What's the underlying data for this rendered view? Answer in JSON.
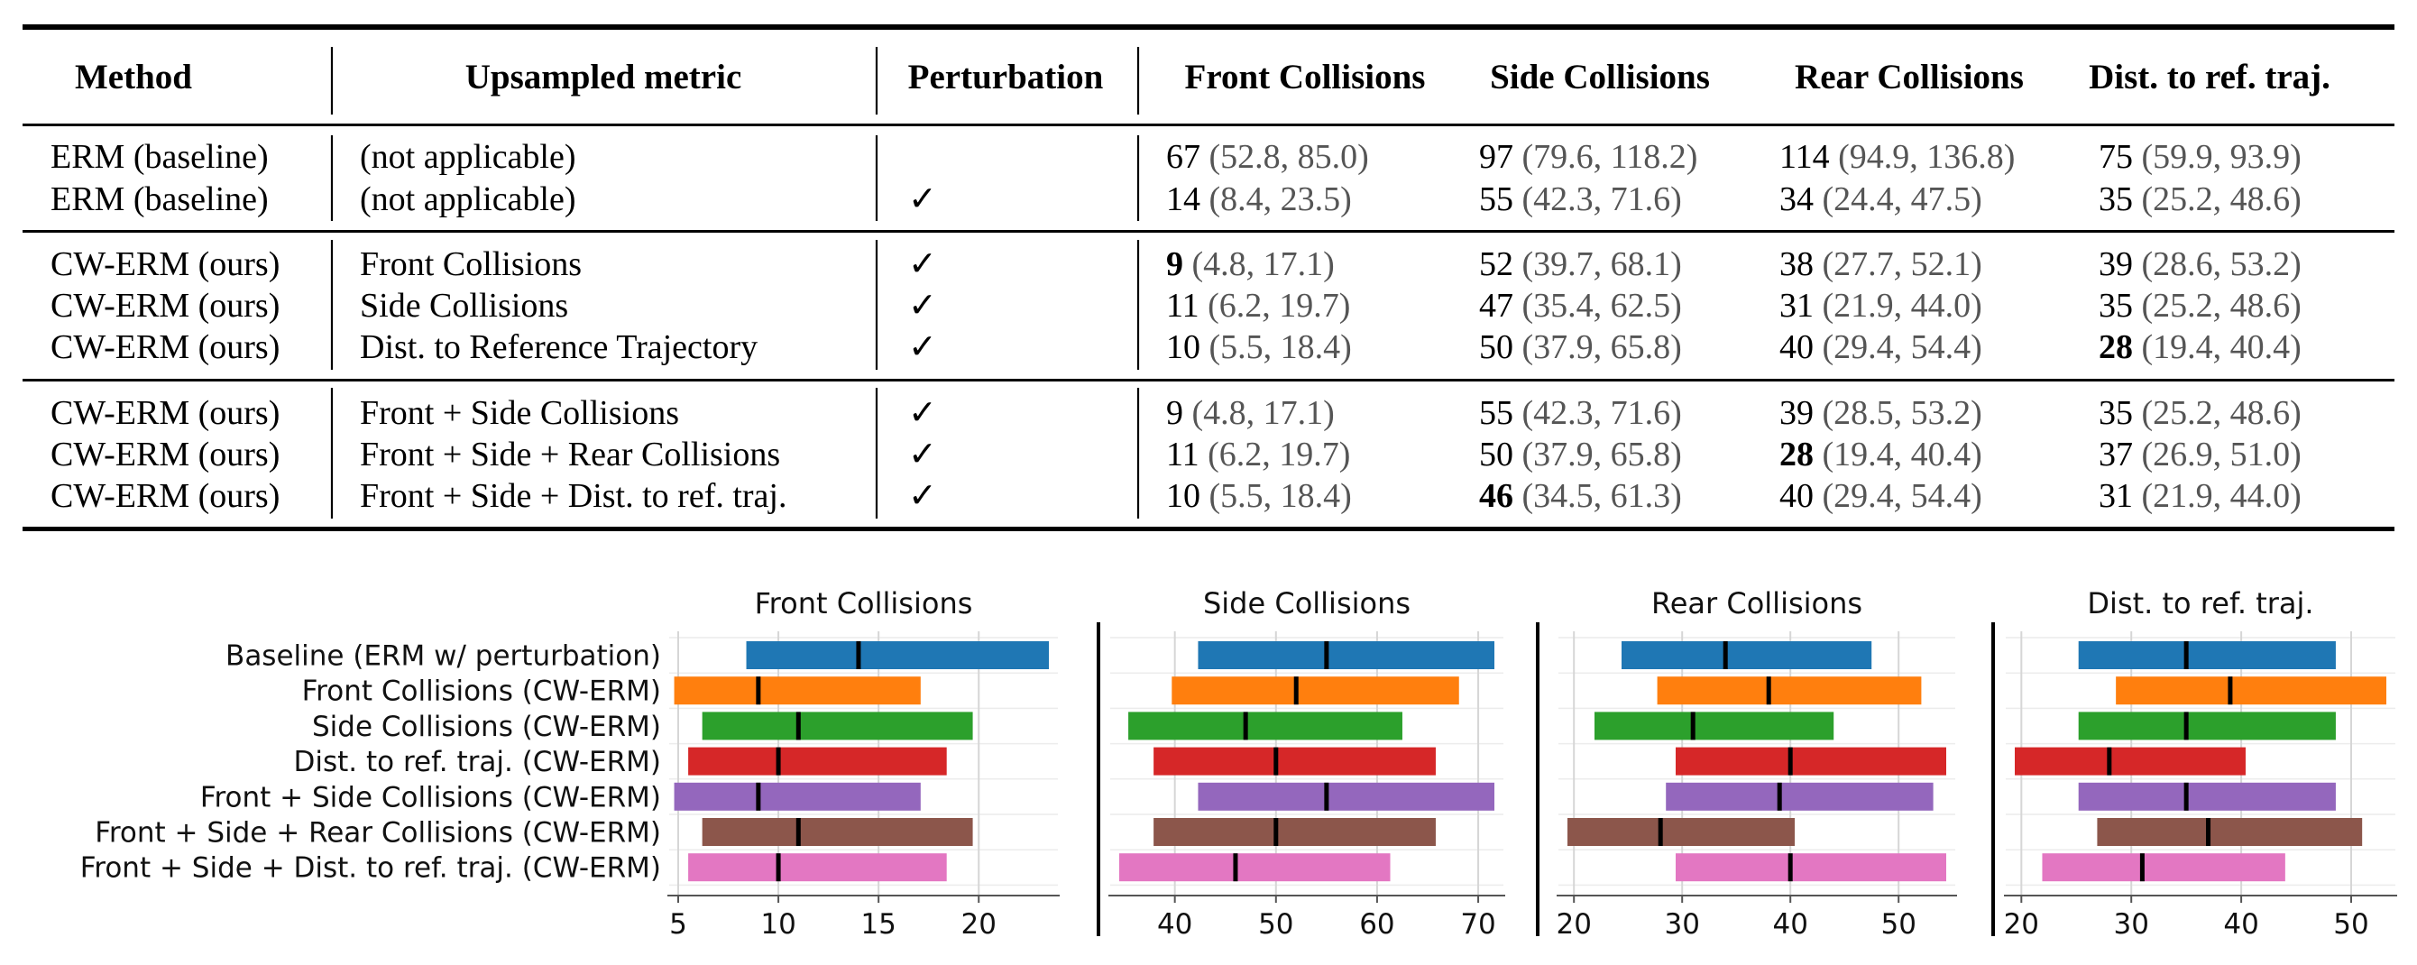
{
  "table": {
    "headers": [
      "Method",
      "Upsampled metric",
      "Perturbation",
      "Front Collisions",
      "Side Collisions",
      "Rear Collisions",
      "Dist. to ref. traj."
    ],
    "groups": [
      [
        {
          "method": "ERM (baseline)",
          "metric": "(not applicable)",
          "pert": "",
          "cells": [
            {
              "v": "67",
              "ci": "(52.8, 85.0)",
              "bold": false
            },
            {
              "v": "97",
              "ci": "(79.6, 118.2)",
              "bold": false
            },
            {
              "v": "114",
              "ci": "(94.9, 136.8)",
              "bold": false
            },
            {
              "v": "75",
              "ci": "(59.9, 93.9)",
              "bold": false
            }
          ]
        },
        {
          "method": "ERM (baseline)",
          "metric": "(not applicable)",
          "pert": "✓",
          "cells": [
            {
              "v": "14",
              "ci": "(8.4, 23.5)",
              "bold": false
            },
            {
              "v": "55",
              "ci": "(42.3, 71.6)",
              "bold": false
            },
            {
              "v": "34",
              "ci": "(24.4, 47.5)",
              "bold": false
            },
            {
              "v": "35",
              "ci": "(25.2, 48.6)",
              "bold": false
            }
          ]
        }
      ],
      [
        {
          "method": "CW-ERM (ours)",
          "metric": "Front Collisions",
          "pert": "✓",
          "cells": [
            {
              "v": "9",
              "ci": "(4.8, 17.1)",
              "bold": true
            },
            {
              "v": "52",
              "ci": "(39.7, 68.1)",
              "bold": false
            },
            {
              "v": "38",
              "ci": "(27.7, 52.1)",
              "bold": false
            },
            {
              "v": "39",
              "ci": "(28.6, 53.2)",
              "bold": false
            }
          ]
        },
        {
          "method": "CW-ERM (ours)",
          "metric": "Side Collisions",
          "pert": "✓",
          "cells": [
            {
              "v": "11",
              "ci": "(6.2, 19.7)",
              "bold": false
            },
            {
              "v": "47",
              "ci": "(35.4, 62.5)",
              "bold": false
            },
            {
              "v": "31",
              "ci": "(21.9, 44.0)",
              "bold": false
            },
            {
              "v": "35",
              "ci": "(25.2, 48.6)",
              "bold": false
            }
          ]
        },
        {
          "method": "CW-ERM (ours)",
          "metric": "Dist. to Reference Trajectory",
          "pert": "✓",
          "cells": [
            {
              "v": "10",
              "ci": "(5.5, 18.4)",
              "bold": false
            },
            {
              "v": "50",
              "ci": "(37.9, 65.8)",
              "bold": false
            },
            {
              "v": "40",
              "ci": "(29.4, 54.4)",
              "bold": false
            },
            {
              "v": "28",
              "ci": "(19.4, 40.4)",
              "bold": true
            }
          ]
        }
      ],
      [
        {
          "method": "CW-ERM (ours)",
          "metric": "Front + Side Collisions",
          "pert": "✓",
          "cells": [
            {
              "v": "9",
              "ci": "(4.8, 17.1)",
              "bold": false
            },
            {
              "v": "55",
              "ci": "(42.3, 71.6)",
              "bold": false
            },
            {
              "v": "39",
              "ci": "(28.5, 53.2)",
              "bold": false
            },
            {
              "v": "35",
              "ci": "(25.2, 48.6)",
              "bold": false
            }
          ]
        },
        {
          "method": "CW-ERM (ours)",
          "metric": "Front + Side + Rear Collisions",
          "pert": "✓",
          "cells": [
            {
              "v": "11",
              "ci": "(6.2, 19.7)",
              "bold": false
            },
            {
              "v": "50",
              "ci": "(37.9, 65.8)",
              "bold": false
            },
            {
              "v": "28",
              "ci": "(19.4, 40.4)",
              "bold": true
            },
            {
              "v": "37",
              "ci": "(26.9, 51.0)",
              "bold": false
            }
          ]
        },
        {
          "method": "CW-ERM (ours)",
          "metric": "Front + Side + Dist. to ref. traj.",
          "pert": "✓",
          "cells": [
            {
              "v": "10",
              "ci": "(5.5, 18.4)",
              "bold": false
            },
            {
              "v": "46",
              "ci": "(34.5, 61.3)",
              "bold": true
            },
            {
              "v": "40",
              "ci": "(29.4, 54.4)",
              "bold": false
            },
            {
              "v": "31",
              "ci": "(21.9, 44.0)",
              "bold": false
            }
          ]
        }
      ]
    ]
  },
  "chart_data": {
    "type": "bar",
    "orientation": "horizontal",
    "bar_meaning": "confidence interval, with median marker",
    "categories": [
      "Baseline (ERM w/ perturbation)",
      "Front Collisions (CW-ERM)",
      "Side Collisions (CW-ERM)",
      "Dist. to ref. traj. (CW-ERM)",
      "Front + Side Collisions (CW-ERM)",
      "Front + Side + Rear Collisions (CW-ERM)",
      "Front + Side + Dist. to ref. traj. (CW-ERM)"
    ],
    "colors": [
      "#1f77b4",
      "#ff7f0e",
      "#2ca02c",
      "#d62728",
      "#9467bd",
      "#8c564b",
      "#e377c2"
    ],
    "grid": true,
    "panels": [
      {
        "title": "Front Collisions",
        "xlim": [
          5,
          23.5
        ],
        "ticks": [
          5,
          10,
          15,
          20
        ],
        "series": [
          {
            "lo": 8.4,
            "hi": 23.5,
            "med": 14
          },
          {
            "lo": 4.8,
            "hi": 17.1,
            "med": 9
          },
          {
            "lo": 6.2,
            "hi": 19.7,
            "med": 11
          },
          {
            "lo": 5.5,
            "hi": 18.4,
            "med": 10
          },
          {
            "lo": 4.8,
            "hi": 17.1,
            "med": 9
          },
          {
            "lo": 6.2,
            "hi": 19.7,
            "med": 11
          },
          {
            "lo": 5.5,
            "hi": 18.4,
            "med": 10
          }
        ]
      },
      {
        "title": "Side Collisions",
        "xlim": [
          34.5,
          71.6
        ],
        "ticks": [
          40,
          50,
          60,
          70
        ],
        "series": [
          {
            "lo": 42.3,
            "hi": 71.6,
            "med": 55
          },
          {
            "lo": 39.7,
            "hi": 68.1,
            "med": 52
          },
          {
            "lo": 35.4,
            "hi": 62.5,
            "med": 47
          },
          {
            "lo": 37.9,
            "hi": 65.8,
            "med": 50
          },
          {
            "lo": 42.3,
            "hi": 71.6,
            "med": 55
          },
          {
            "lo": 37.9,
            "hi": 65.8,
            "med": 50
          },
          {
            "lo": 34.5,
            "hi": 61.3,
            "med": 46
          }
        ]
      },
      {
        "title": "Rear Collisions",
        "xlim": [
          19.4,
          54.4
        ],
        "ticks": [
          20,
          30,
          40,
          50
        ],
        "series": [
          {
            "lo": 24.4,
            "hi": 47.5,
            "med": 34
          },
          {
            "lo": 27.7,
            "hi": 52.1,
            "med": 38
          },
          {
            "lo": 21.9,
            "hi": 44.0,
            "med": 31
          },
          {
            "lo": 29.4,
            "hi": 54.4,
            "med": 40
          },
          {
            "lo": 28.5,
            "hi": 53.2,
            "med": 39
          },
          {
            "lo": 19.4,
            "hi": 40.4,
            "med": 28
          },
          {
            "lo": 29.4,
            "hi": 54.4,
            "med": 40
          }
        ]
      },
      {
        "title": "Dist. to ref. traj.",
        "xlim": [
          19.4,
          53.2
        ],
        "ticks": [
          20,
          30,
          40,
          50
        ],
        "series": [
          {
            "lo": 25.2,
            "hi": 48.6,
            "med": 35
          },
          {
            "lo": 28.6,
            "hi": 53.2,
            "med": 39
          },
          {
            "lo": 25.2,
            "hi": 48.6,
            "med": 35
          },
          {
            "lo": 19.4,
            "hi": 40.4,
            "med": 28
          },
          {
            "lo": 25.2,
            "hi": 48.6,
            "med": 35
          },
          {
            "lo": 26.9,
            "hi": 51.0,
            "med": 37
          },
          {
            "lo": 21.9,
            "hi": 44.0,
            "med": 31
          }
        ]
      }
    ]
  }
}
